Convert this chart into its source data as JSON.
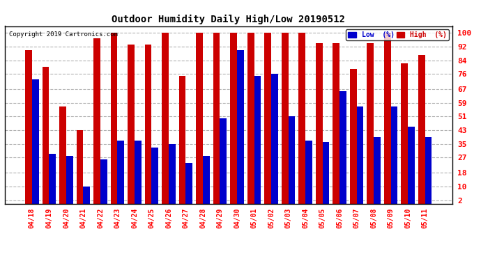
{
  "title": "Outdoor Humidity Daily High/Low 20190512",
  "copyright": "Copyright 2019 Cartronics.com",
  "legend_low": "Low  (%)",
  "legend_high": "High  (%)",
  "low_color": "#0000cc",
  "high_color": "#cc0000",
  "bg_color": "#ffffff",
  "plot_bg_color": "#ffffff",
  "ylabel_ticks": [
    2,
    10,
    18,
    27,
    35,
    43,
    51,
    59,
    67,
    76,
    84,
    92,
    100
  ],
  "categories": [
    "04/18",
    "04/19",
    "04/20",
    "04/21",
    "04/22",
    "04/23",
    "04/24",
    "04/25",
    "04/26",
    "04/27",
    "04/28",
    "04/29",
    "04/30",
    "05/01",
    "05/02",
    "05/03",
    "05/04",
    "05/05",
    "05/06",
    "05/07",
    "05/08",
    "05/09",
    "05/10",
    "05/11"
  ],
  "high_values": [
    90,
    80,
    57,
    43,
    97,
    100,
    93,
    93,
    100,
    75,
    100,
    100,
    100,
    100,
    100,
    100,
    100,
    94,
    94,
    79,
    94,
    100,
    82,
    87
  ],
  "low_values": [
    73,
    29,
    28,
    10,
    26,
    37,
    37,
    33,
    35,
    24,
    28,
    50,
    90,
    75,
    76,
    51,
    37,
    36,
    66,
    57,
    39,
    57,
    45,
    39
  ],
  "ylim": [
    0,
    104
  ],
  "bar_width": 0.4,
  "figsize": [
    6.9,
    3.75
  ],
  "dpi": 100
}
